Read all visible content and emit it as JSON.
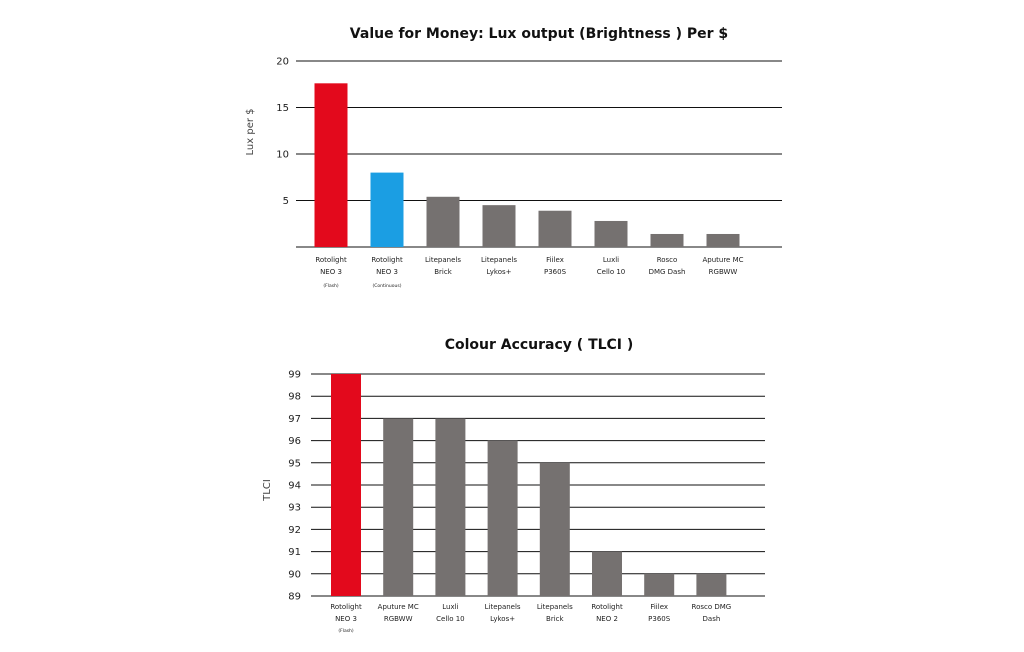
{
  "colors": {
    "red": "#e3091c",
    "blue": "#1b9ee3",
    "grey": "#757170",
    "grid": "#111111"
  },
  "chart_data": [
    {
      "type": "bar",
      "title": "Value for Money: Lux output (Brightness ) Per $",
      "xlabel": "",
      "ylabel": "Lux per $",
      "ylim": [
        0,
        20
      ],
      "yticks": [
        "20",
        "15",
        "10",
        "5"
      ],
      "grid": true,
      "categories": [
        {
          "line1": "Rotolight",
          "line2": "NEO 3",
          "note": "(Flash)"
        },
        {
          "line1": "Rotolight",
          "line2": "NEO 3",
          "note": "(Continuous)"
        },
        {
          "line1": "Litepanels",
          "line2": "Brick",
          "note": ""
        },
        {
          "line1": "Litepanels",
          "line2": "Lykos+",
          "note": ""
        },
        {
          "line1": "Fiilex",
          "line2": "P360S",
          "note": ""
        },
        {
          "line1": "Luxli",
          "line2": "Cello 10",
          "note": ""
        },
        {
          "line1": "Rosco",
          "line2": "DMG Dash",
          "note": ""
        },
        {
          "line1": "Aputure MC",
          "line2": "RGBWW",
          "note": ""
        }
      ],
      "values": [
        17.6,
        8.0,
        5.4,
        4.5,
        3.9,
        2.8,
        1.4,
        1.4
      ],
      "bar_colors": [
        "red",
        "blue",
        "grey",
        "grey",
        "grey",
        "grey",
        "grey",
        "grey"
      ]
    },
    {
      "type": "bar",
      "title": "Colour Accuracy ( TLCI )",
      "xlabel": "",
      "ylabel": "TLCI",
      "ylim": [
        89,
        99
      ],
      "yticks": [
        "99",
        "98",
        "97",
        "96",
        "95",
        "94",
        "93",
        "92",
        "91",
        "90",
        "89"
      ],
      "grid": true,
      "categories": [
        {
          "line1": "Rotolight",
          "line2": "NEO 3",
          "note": "(Flash)"
        },
        {
          "line1": "Aputure MC",
          "line2": "RGBWW",
          "note": ""
        },
        {
          "line1": "Luxli",
          "line2": "Cello 10",
          "note": ""
        },
        {
          "line1": "Litepanels",
          "line2": "Lykos+",
          "note": ""
        },
        {
          "line1": "Litepanels",
          "line2": "Brick",
          "note": ""
        },
        {
          "line1": "Rotolight",
          "line2": "NEO 2",
          "note": ""
        },
        {
          "line1": "Fiilex",
          "line2": "P360S",
          "note": ""
        },
        {
          "line1": "Rosco DMG",
          "line2": "Dash",
          "note": ""
        }
      ],
      "values": [
        99,
        97,
        97,
        96,
        95,
        91,
        90,
        90
      ],
      "bar_colors": [
        "red",
        "grey",
        "grey",
        "grey",
        "grey",
        "grey",
        "grey",
        "grey"
      ]
    }
  ]
}
